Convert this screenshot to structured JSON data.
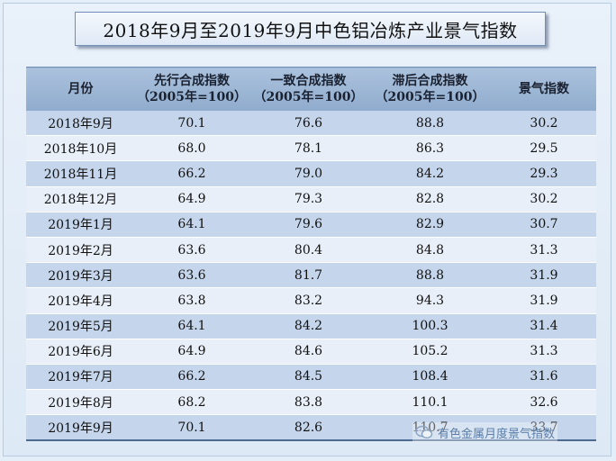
{
  "title": "2018年9月至2019年9月中色铝冶炼产业景气指数",
  "table": {
    "headers": [
      {
        "line1": "月份",
        "line2": ""
      },
      {
        "line1": "先行合成指数",
        "line2": "（2005年=100）"
      },
      {
        "line1": "一致合成指数",
        "line2": "（2005年=100）"
      },
      {
        "line1": "滞后合成指数",
        "line2": "（2005年=100）"
      },
      {
        "line1": "景气指数",
        "line2": ""
      }
    ],
    "rows": [
      [
        "2018年9月",
        "70.1",
        "76.6",
        "88.8",
        "30.2"
      ],
      [
        "2018年10月",
        "68.0",
        "78.1",
        "86.3",
        "29.5"
      ],
      [
        "2018年11月",
        "66.2",
        "79.0",
        "84.2",
        "29.3"
      ],
      [
        "2018年12月",
        "64.9",
        "79.3",
        "82.8",
        "30.2"
      ],
      [
        "2019年1月",
        "64.1",
        "79.6",
        "82.9",
        "30.7"
      ],
      [
        "2019年2月",
        "63.6",
        "80.4",
        "84.8",
        "31.3"
      ],
      [
        "2019年3月",
        "63.6",
        "81.7",
        "88.8",
        "31.9"
      ],
      [
        "2019年4月",
        "63.8",
        "83.2",
        "94.3",
        "31.9"
      ],
      [
        "2019年5月",
        "64.1",
        "84.2",
        "100.3",
        "31.4"
      ],
      [
        "2019年6月",
        "64.9",
        "84.6",
        "105.2",
        "31.3"
      ],
      [
        "2019年7月",
        "66.2",
        "84.5",
        "108.4",
        "31.6"
      ],
      [
        "2019年8月",
        "68.2",
        "83.8",
        "110.1",
        "32.6"
      ],
      [
        "2019年9月",
        "70.1",
        "82.6",
        "110.7",
        "33.7"
      ]
    ]
  },
  "watermark": {
    "text": "有色金属月度景气指数",
    "icon": "wechat-icon"
  },
  "colors": {
    "header_bg": "#9db6d6",
    "row_odd": "#c5d6ec",
    "row_even": "#e8eff8",
    "page_bg": "#e4eef8"
  }
}
